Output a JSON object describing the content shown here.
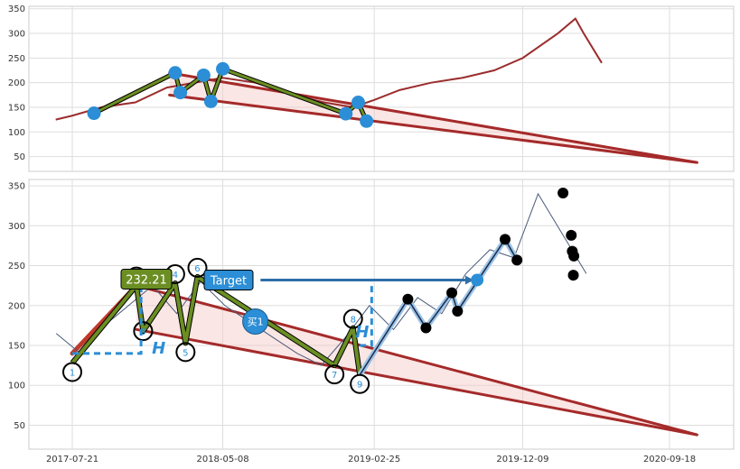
{
  "chart_data": [
    {
      "type": "line",
      "ylim": [
        20,
        355
      ],
      "yticks": [
        50,
        100,
        150,
        200,
        250,
        300,
        350
      ],
      "x": [
        "2017-06-19",
        "2017-07-21",
        "2017-09-15",
        "2017-11-20",
        "2018-01-20",
        "2018-03-15",
        "2018-05-08",
        "2018-07-10",
        "2018-09-20",
        "2018-11-20",
        "2019-01-15",
        "2019-02-25",
        "2019-04-15",
        "2019-06-15",
        "2019-08-15",
        "2019-10-15",
        "2019-12-09",
        "2020-02-15",
        "2020-03-20",
        "2020-04-05",
        "2020-05-10"
      ],
      "series": [
        {
          "values": [
            125,
            133,
            150,
            160,
            190,
            200,
            210,
            200,
            175,
            160,
            150,
            165,
            185,
            200,
            210,
            225,
            250,
            300,
            330,
            300,
            240
          ]
        }
      ],
      "trend_lines": [
        {
          "from": [
            "2017-09-01",
            138
          ],
          "to": [
            "2018-02-05",
            220
          ],
          "color": "#c0392b"
        },
        {
          "from": [
            "2018-01-25",
            220
          ],
          "to": [
            "2020-11-10",
            38
          ],
          "color": "#a52a2a"
        },
        {
          "from": [
            "2018-01-25",
            175
          ],
          "to": [
            "2020-11-10",
            38
          ],
          "color": "#a52a2a"
        }
      ],
      "pattern_points": [
        {
          "x": "2017-09-01",
          "y": 138
        },
        {
          "x": "2018-02-05",
          "y": 220
        },
        {
          "x": "2018-02-15",
          "y": 180
        },
        {
          "x": "2018-04-01",
          "y": 215
        },
        {
          "x": "2018-04-15",
          "y": 162
        },
        {
          "x": "2018-05-08",
          "y": 228
        },
        {
          "x": "2019-01-01",
          "y": 137
        },
        {
          "x": "2019-01-25",
          "y": 160
        },
        {
          "x": "2019-02-10",
          "y": 122
        }
      ]
    },
    {
      "type": "line",
      "ylim": [
        20,
        358
      ],
      "yticks": [
        50,
        100,
        150,
        200,
        250,
        300,
        350
      ],
      "xticks": [
        "2017-07-21",
        "2018-05-08",
        "2019-02-25",
        "2019-12-09",
        "2020-09-18"
      ],
      "series": [
        {
          "values": [
            165,
            140,
            175,
            200,
            225,
            190,
            230,
            200,
            180,
            160,
            140,
            125,
            160,
            200,
            170,
            210,
            190,
            240,
            270,
            260,
            340,
            290,
            240
          ]
        }
      ],
      "trend_lines": [
        {
          "from": [
            "2017-07-21",
            140
          ],
          "to": [
            "2017-11-22",
            225
          ],
          "color": "#c0392b"
        },
        {
          "from": [
            "2017-11-22",
            225
          ],
          "to": [
            "2020-11-10",
            38
          ],
          "color": "#a52a2a"
        },
        {
          "from": [
            "2017-11-22",
            170
          ],
          "to": [
            "2020-11-10",
            38
          ],
          "color": "#a52a2a"
        }
      ],
      "pivots": [
        {
          "label": "1",
          "x": "2017-07-21",
          "y": 128
        },
        {
          "label": "2",
          "x": "2017-11-22",
          "y": 225
        },
        {
          "label": "3",
          "x": "2017-12-05",
          "y": 168
        },
        {
          "label": "4",
          "x": "2018-02-05",
          "y": 228
        },
        {
          "label": "5",
          "x": "2018-02-25",
          "y": 153
        },
        {
          "label": "6",
          "x": "2018-03-20",
          "y": 236
        },
        {
          "label": "7",
          "x": "2018-12-10",
          "y": 125
        },
        {
          "label": "8",
          "x": "2019-01-15",
          "y": 172
        },
        {
          "label": "9",
          "x": "2019-01-28",
          "y": 113
        }
      ],
      "future_points": [
        {
          "x": "2019-05-01",
          "y": 208
        },
        {
          "x": "2019-06-05",
          "y": 172
        },
        {
          "x": "2019-07-25",
          "y": 216
        },
        {
          "x": "2019-08-05",
          "y": 193
        },
        {
          "x": "2019-11-05",
          "y": 283
        },
        {
          "x": "2019-11-28",
          "y": 257
        },
        {
          "x": "2020-02-25",
          "y": 341
        },
        {
          "x": "2020-03-12",
          "y": 288
        },
        {
          "x": "2020-03-14",
          "y": 268
        },
        {
          "x": "2020-03-17",
          "y": 262
        },
        {
          "x": "2020-03-16",
          "y": 238
        }
      ],
      "buy_point": {
        "label": "买1",
        "x": "2018-07-10",
        "y": 180
      },
      "price_label": "232.21",
      "target_label": "Target",
      "target_price": 232,
      "h_labels": [
        "H",
        "H"
      ]
    }
  ]
}
